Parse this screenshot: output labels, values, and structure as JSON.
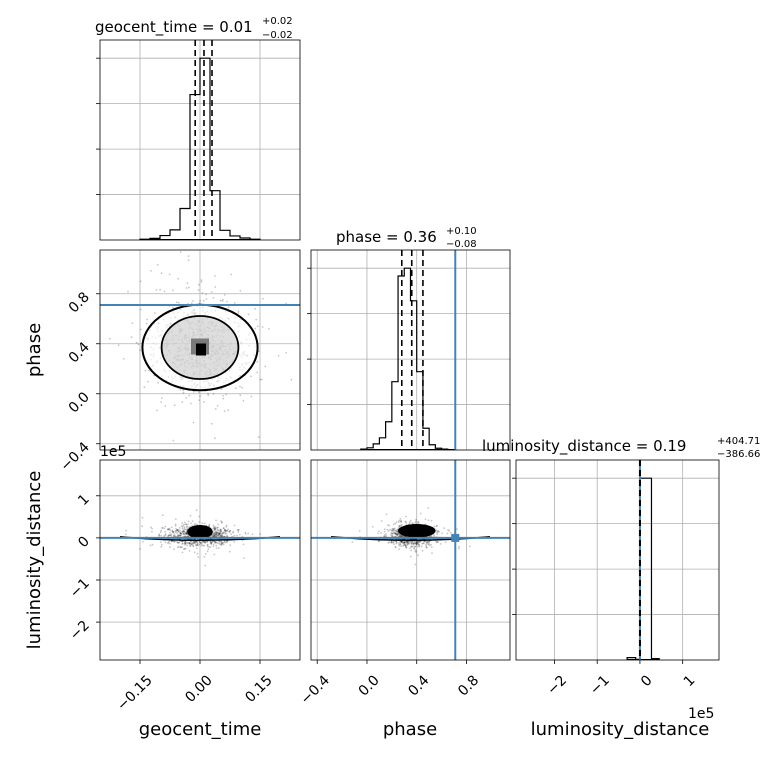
{
  "chart_data": {
    "type": "corner",
    "parameters": [
      "geocent_time",
      "phase",
      "luminosity_distance"
    ],
    "truth_color": "#4682b4",
    "truths": {
      "geocent_time": null,
      "phase": 0.71,
      "luminosity_distance": 0
    },
    "panels": {
      "geocent_time": {
        "title_name": "geocent_time",
        "title_value": "0.01",
        "title_plus": "+0.02",
        "title_minus": "−0.02",
        "xlim": [
          -0.25,
          0.25
        ],
        "quantiles": [
          -0.012,
          0.01,
          0.03
        ],
        "hist_edges": [
          -0.15,
          -0.125,
          -0.1,
          -0.075,
          -0.05,
          -0.025,
          0.0,
          0.025,
          0.05,
          0.075,
          0.1,
          0.125,
          0.15
        ],
        "hist_counts": [
          2,
          4,
          11,
          25,
          78,
          360,
          450,
          122,
          24,
          10,
          5,
          2
        ]
      },
      "phase": {
        "title_name": "phase",
        "title_value": "0.36",
        "title_plus": "+0.10",
        "title_minus": "−0.08",
        "xlim": [
          -0.45,
          1.15
        ],
        "quantiles": [
          0.28,
          0.36,
          0.45
        ],
        "hist_edges": [
          -0.05,
          0.0,
          0.05,
          0.1,
          0.15,
          0.2,
          0.25,
          0.3,
          0.35,
          0.4,
          0.45,
          0.5,
          0.55,
          0.6,
          0.65,
          0.7
        ],
        "hist_counts": [
          2,
          5,
          14,
          28,
          65,
          157,
          400,
          418,
          343,
          180,
          50,
          12,
          4,
          2,
          1
        ]
      },
      "luminosity_distance": {
        "title_name": "luminosity_distance",
        "title_value": "0.19",
        "title_plus": "+404.71",
        "title_minus": "−386.66",
        "xlim": [
          -2.9,
          1.85
        ],
        "quantiles": [
          -0.0039,
          0.0,
          0.004
        ],
        "hist_edges": [
          -0.3,
          -0.1,
          0.0,
          0.27,
          0.45
        ],
        "hist_counts": [
          12,
          3,
          905,
          7
        ]
      }
    },
    "axes": {
      "geocent_time": {
        "ticks": [
          -0.15,
          0.0,
          0.15
        ],
        "tick_labels": [
          "−0.15",
          "0.00",
          "0.15"
        ],
        "label": "geocent_time"
      },
      "phase": {
        "ticks": [
          -0.4,
          0.0,
          0.4,
          0.8
        ],
        "tick_labels": [
          "−0.4",
          "0.0",
          "0.4",
          "0.8"
        ],
        "label": "phase"
      },
      "luminosity_distance": {
        "ticks": [
          -2,
          -1,
          0,
          1
        ],
        "tick_labels": [
          "−2",
          "−1",
          "0",
          "1"
        ],
        "label": "luminosity_distance",
        "offset_text": "1e5",
        "ylim": [
          -2.9,
          1.85
        ]
      }
    },
    "scatter_2d": {
      "phase_vs_geocent_time": {
        "center": [
          0.0,
          0.37
        ],
        "spread": [
          0.06,
          0.18
        ],
        "contour_levels": 3
      },
      "luminosity_distance_vs_geocent_time": {
        "center": [
          0.0,
          0.05
        ],
        "spread": [
          0.04,
          0.12
        ]
      },
      "luminosity_distance_vs_phase": {
        "center": [
          0.36,
          0.05
        ],
        "spread": [
          0.09,
          0.12
        ]
      }
    }
  }
}
